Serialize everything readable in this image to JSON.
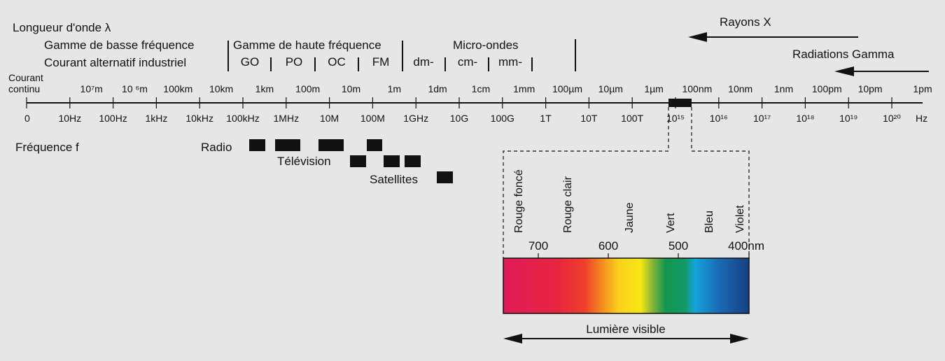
{
  "title": "Longueur d'onde λ",
  "lf_band": {
    "line1": "Gamme de basse fréquence",
    "line2": "Courant alternatif industriel"
  },
  "hf_band": {
    "title": "Gamme de haute fréquence",
    "bands": [
      "GO",
      "PO",
      "OC",
      "FM"
    ]
  },
  "micro_band": {
    "title": "Micro-ondes",
    "bands": [
      "dm-",
      "cm-",
      "mm-"
    ]
  },
  "rays": {
    "xray": "Rayons X",
    "gamma": "Radiations Gamma"
  },
  "axis": {
    "dc_label_line1": "Courant",
    "dc_label_line2": "continu",
    "wavelength_labels": [
      "10⁷m",
      "10 ⁶m",
      "100km",
      "10km",
      "1km",
      "100m",
      "10m",
      "1m",
      "1dm",
      "1cm",
      "1mm",
      "100µm",
      "10µm",
      "1µm",
      "100nm",
      "10nm",
      "1nm",
      "100pm",
      "10pm",
      "1pm"
    ],
    "frequency_labels": [
      "0",
      "10Hz",
      "100Hz",
      "1kHz",
      "10kHz",
      "100kHz",
      "1MHz",
      "10M",
      "100M",
      "1GHz",
      "10G",
      "100G",
      "1T",
      "10T",
      "100T",
      "10¹⁵",
      "10¹⁶",
      "10¹⁷",
      "10¹⁸",
      "10¹⁹",
      "10²⁰"
    ],
    "unit": "Hz"
  },
  "frequency_label": "Fréquence f",
  "services": {
    "radio": "Radio",
    "tv": "Télévision",
    "satellites": "Satellites"
  },
  "visible": {
    "colors": [
      "Rouge foncé",
      "Rouge clair",
      "Jaune",
      "Vert",
      "Bleu",
      "Violet"
    ],
    "wavelengths": [
      "700",
      "600",
      "500",
      "400nm"
    ],
    "caption": "Lumière visible"
  }
}
